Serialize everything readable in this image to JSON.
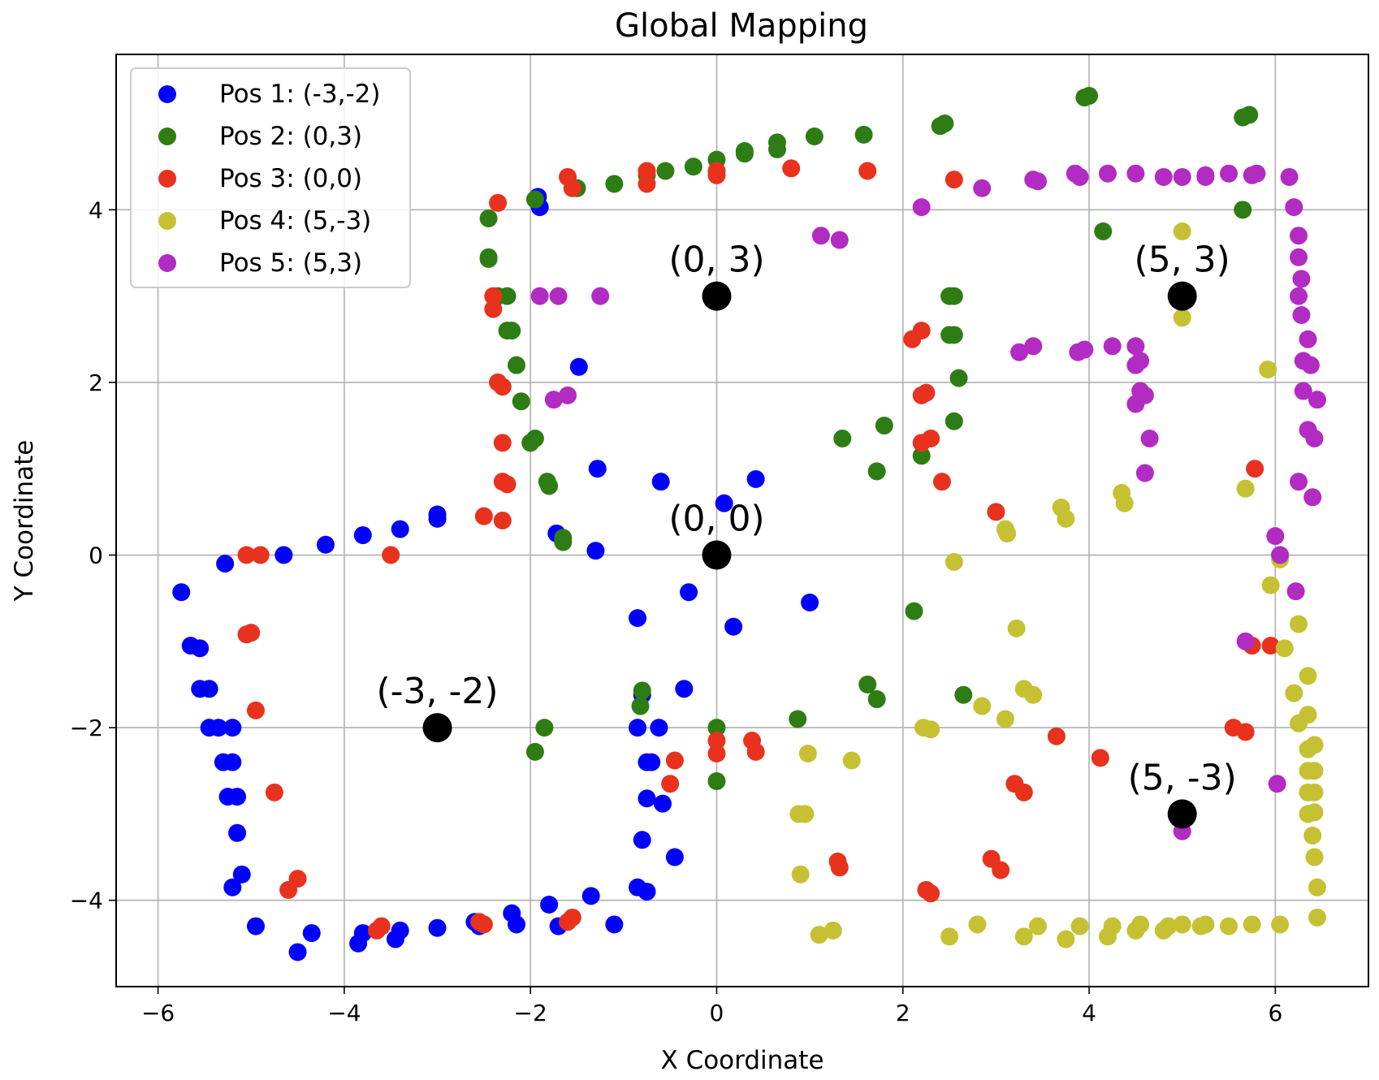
{
  "chart_data": {
    "type": "scatter",
    "title": "Global Mapping",
    "xlabel": "X Coordinate",
    "ylabel": "Y Coordinate",
    "xlim": [
      -6.45,
      7.0
    ],
    "ylim": [
      -5.0,
      5.8
    ],
    "xticks": [
      -6,
      -4,
      -2,
      0,
      2,
      4,
      6
    ],
    "yticks": [
      -4,
      -2,
      0,
      2,
      4
    ],
    "xtick_labels": [
      "−6",
      "−4",
      "−2",
      "0",
      "2",
      "4",
      "6"
    ],
    "ytick_labels": [
      "−4",
      "−2",
      "0",
      "2",
      "4"
    ],
    "grid": true,
    "legend_position": "upper left",
    "series": [
      {
        "name": "Pos 1: (-3,-2)",
        "color": "#0000ff",
        "points": [
          [
            -5.75,
            -0.43
          ],
          [
            -5.65,
            -1.05
          ],
          [
            -5.55,
            -1.08
          ],
          [
            -5.55,
            -1.55
          ],
          [
            -5.45,
            -1.55
          ],
          [
            -5.45,
            -2.0
          ],
          [
            -5.35,
            -2.0
          ],
          [
            -5.2,
            -2.0
          ],
          [
            -5.3,
            -2.4
          ],
          [
            -5.2,
            -2.4
          ],
          [
            -5.25,
            -2.8
          ],
          [
            -5.15,
            -2.8
          ],
          [
            -5.15,
            -3.22
          ],
          [
            -5.1,
            -3.7
          ],
          [
            -5.2,
            -3.85
          ],
          [
            -4.95,
            -4.3
          ],
          [
            -4.5,
            -4.6
          ],
          [
            -4.35,
            -4.38
          ],
          [
            -3.85,
            -4.5
          ],
          [
            -3.8,
            -4.38
          ],
          [
            -3.45,
            -4.45
          ],
          [
            -3.4,
            -4.35
          ],
          [
            -3.0,
            -4.32
          ],
          [
            -2.6,
            -4.25
          ],
          [
            -2.55,
            -4.3
          ],
          [
            -2.2,
            -4.15
          ],
          [
            -2.15,
            -4.28
          ],
          [
            -1.8,
            -4.05
          ],
          [
            -1.7,
            -4.3
          ],
          [
            -1.35,
            -3.95
          ],
          [
            -1.1,
            -4.28
          ],
          [
            -0.85,
            -3.85
          ],
          [
            -0.75,
            -3.9
          ],
          [
            -0.8,
            -3.3
          ],
          [
            -0.45,
            -3.5
          ],
          [
            -0.75,
            -2.82
          ],
          [
            -0.58,
            -2.88
          ],
          [
            -0.7,
            -2.4
          ],
          [
            -0.75,
            -2.4
          ],
          [
            -0.85,
            -2.0
          ],
          [
            -0.62,
            -2.0
          ],
          [
            -0.8,
            -1.62
          ],
          [
            -0.35,
            -1.55
          ],
          [
            -0.85,
            -0.73
          ],
          [
            -0.3,
            -0.43
          ],
          [
            0.18,
            -0.83
          ],
          [
            1.0,
            -0.55
          ],
          [
            -0.6,
            0.85
          ],
          [
            0.08,
            0.6
          ],
          [
            0.42,
            0.88
          ],
          [
            -1.28,
            1.0
          ],
          [
            -1.3,
            0.05
          ],
          [
            -1.72,
            0.25
          ],
          [
            -1.48,
            2.18
          ],
          [
            -1.92,
            4.15
          ],
          [
            -1.9,
            4.03
          ],
          [
            -5.28,
            -0.1
          ],
          [
            -4.65,
            0.0
          ],
          [
            -4.2,
            0.12
          ],
          [
            -3.8,
            0.23
          ],
          [
            -3.4,
            0.3
          ],
          [
            -3.0,
            0.42
          ],
          [
            -3.0,
            0.47
          ]
        ]
      },
      {
        "name": "Pos 2: (0,3)",
        "color": "#2e7d14",
        "points": [
          [
            -2.45,
            3.45
          ],
          [
            -2.45,
            3.9
          ],
          [
            -2.35,
            3.0
          ],
          [
            -2.25,
            3.0
          ],
          [
            -2.25,
            2.6
          ],
          [
            -2.2,
            2.6
          ],
          [
            -2.15,
            2.2
          ],
          [
            -2.1,
            1.78
          ],
          [
            -2.0,
            1.3
          ],
          [
            -1.95,
            1.35
          ],
          [
            -1.8,
            0.8
          ],
          [
            -1.82,
            0.85
          ],
          [
            -1.65,
            0.2
          ],
          [
            -1.65,
            0.15
          ],
          [
            -1.95,
            4.12
          ],
          [
            -1.5,
            4.25
          ],
          [
            -1.1,
            4.3
          ],
          [
            -0.75,
            4.4
          ],
          [
            -0.55,
            4.45
          ],
          [
            -0.25,
            4.5
          ],
          [
            0.0,
            4.58
          ],
          [
            0.3,
            4.65
          ],
          [
            0.3,
            4.68
          ],
          [
            0.65,
            4.7
          ],
          [
            0.65,
            4.78
          ],
          [
            1.05,
            4.85
          ],
          [
            1.58,
            4.87
          ],
          [
            2.4,
            4.97
          ],
          [
            2.45,
            5.0
          ],
          [
            3.95,
            5.3
          ],
          [
            4.0,
            5.32
          ],
          [
            5.65,
            5.07
          ],
          [
            5.72,
            5.1
          ],
          [
            5.65,
            4.0
          ],
          [
            4.15,
            3.75
          ],
          [
            2.5,
            3.0
          ],
          [
            2.55,
            3.0
          ],
          [
            2.5,
            2.55
          ],
          [
            2.55,
            2.55
          ],
          [
            2.6,
            2.05
          ],
          [
            2.55,
            1.55
          ],
          [
            2.2,
            1.15
          ],
          [
            1.8,
            1.5
          ],
          [
            1.35,
            1.35
          ],
          [
            1.72,
            0.97
          ],
          [
            2.12,
            -0.65
          ],
          [
            1.62,
            -1.5
          ],
          [
            1.72,
            -1.67
          ],
          [
            2.65,
            -1.62
          ],
          [
            0.87,
            -1.9
          ],
          [
            0.0,
            -2.0
          ],
          [
            0.0,
            -2.62
          ],
          [
            -1.85,
            -2.0
          ],
          [
            -1.95,
            -2.28
          ],
          [
            -0.8,
            -1.57
          ],
          [
            -0.82,
            -1.75
          ],
          [
            -2.45,
            3.43
          ]
        ]
      },
      {
        "name": "Pos 3: (0,0)",
        "color": "#e8321e",
        "points": [
          [
            -5.05,
            0.0
          ],
          [
            -4.9,
            0.0
          ],
          [
            -3.5,
            0.0
          ],
          [
            -5.05,
            -0.92
          ],
          [
            -5.0,
            -0.9
          ],
          [
            -4.95,
            -1.8
          ],
          [
            -4.75,
            -2.75
          ],
          [
            -4.5,
            -3.75
          ],
          [
            -4.6,
            -3.88
          ],
          [
            -3.65,
            -4.35
          ],
          [
            -3.6,
            -4.3
          ],
          [
            -2.55,
            -4.25
          ],
          [
            -2.5,
            -4.28
          ],
          [
            -1.6,
            -4.25
          ],
          [
            -1.55,
            -4.2
          ],
          [
            -0.45,
            -2.38
          ],
          [
            -0.5,
            -2.65
          ],
          [
            0.0,
            -2.15
          ],
          [
            0.0,
            -2.3
          ],
          [
            0.38,
            -2.15
          ],
          [
            0.42,
            -2.28
          ],
          [
            1.3,
            -3.55
          ],
          [
            1.32,
            -3.62
          ],
          [
            2.25,
            -3.88
          ],
          [
            2.3,
            -3.92
          ],
          [
            2.95,
            -3.52
          ],
          [
            3.05,
            -3.65
          ],
          [
            3.2,
            -2.65
          ],
          [
            3.3,
            -2.75
          ],
          [
            3.65,
            -2.1
          ],
          [
            4.12,
            -2.35
          ],
          [
            5.55,
            -2.0
          ],
          [
            5.68,
            -2.05
          ],
          [
            5.75,
            -1.05
          ],
          [
            5.95,
            -1.05
          ],
          [
            6.05,
            0.0
          ],
          [
            5.78,
            1.0
          ],
          [
            3.0,
            0.5
          ],
          [
            2.42,
            0.85
          ],
          [
            2.2,
            1.3
          ],
          [
            2.3,
            1.35
          ],
          [
            2.2,
            1.85
          ],
          [
            2.25,
            1.88
          ],
          [
            2.1,
            2.5
          ],
          [
            2.2,
            2.6
          ],
          [
            2.55,
            4.35
          ],
          [
            1.62,
            4.45
          ],
          [
            0.8,
            4.48
          ],
          [
            0.0,
            4.4
          ],
          [
            0.0,
            4.45
          ],
          [
            -0.75,
            4.3
          ],
          [
            -0.75,
            4.45
          ],
          [
            -1.6,
            4.38
          ],
          [
            -1.55,
            4.25
          ],
          [
            -2.35,
            4.08
          ],
          [
            -2.4,
            3.0
          ],
          [
            -2.4,
            2.85
          ],
          [
            -2.35,
            2.0
          ],
          [
            -2.3,
            1.95
          ],
          [
            -2.3,
            1.3
          ],
          [
            -2.3,
            0.85
          ],
          [
            -2.25,
            0.82
          ],
          [
            -2.5,
            0.45
          ],
          [
            -2.3,
            0.4
          ]
        ]
      },
      {
        "name": "Pos 4: (5,-3)",
        "color": "#c5c133",
        "points": [
          [
            5.0,
            3.75
          ],
          [
            5.0,
            2.75
          ],
          [
            5.92,
            2.15
          ],
          [
            5.68,
            0.77
          ],
          [
            4.35,
            0.72
          ],
          [
            4.38,
            0.6
          ],
          [
            3.7,
            0.55
          ],
          [
            3.75,
            0.42
          ],
          [
            3.1,
            0.3
          ],
          [
            3.12,
            0.25
          ],
          [
            2.55,
            -0.08
          ],
          [
            3.22,
            -0.85
          ],
          [
            3.3,
            -1.55
          ],
          [
            3.4,
            -1.62
          ],
          [
            2.85,
            -1.75
          ],
          [
            3.1,
            -1.9
          ],
          [
            2.22,
            -2.0
          ],
          [
            2.3,
            -2.02
          ],
          [
            0.98,
            -2.3
          ],
          [
            1.45,
            -2.38
          ],
          [
            0.88,
            -3.0
          ],
          [
            0.95,
            -3.0
          ],
          [
            0.9,
            -3.7
          ],
          [
            1.1,
            -4.4
          ],
          [
            1.25,
            -4.35
          ],
          [
            2.5,
            -4.42
          ],
          [
            2.8,
            -4.28
          ],
          [
            3.3,
            -4.42
          ],
          [
            3.45,
            -4.3
          ],
          [
            3.75,
            -4.45
          ],
          [
            3.9,
            -4.3
          ],
          [
            4.2,
            -4.42
          ],
          [
            4.25,
            -4.3
          ],
          [
            4.5,
            -4.35
          ],
          [
            4.55,
            -4.28
          ],
          [
            4.8,
            -4.35
          ],
          [
            4.85,
            -4.3
          ],
          [
            5.0,
            -4.28
          ],
          [
            5.2,
            -4.3
          ],
          [
            5.25,
            -4.28
          ],
          [
            5.5,
            -4.3
          ],
          [
            5.75,
            -4.28
          ],
          [
            6.05,
            -4.28
          ],
          [
            6.45,
            -4.2
          ],
          [
            6.45,
            -3.85
          ],
          [
            6.42,
            -3.5
          ],
          [
            6.4,
            -3.25
          ],
          [
            6.35,
            -3.0
          ],
          [
            6.42,
            -2.98
          ],
          [
            6.35,
            -2.75
          ],
          [
            6.42,
            -2.75
          ],
          [
            6.35,
            -2.5
          ],
          [
            6.42,
            -2.5
          ],
          [
            6.35,
            -2.25
          ],
          [
            6.42,
            -2.2
          ],
          [
            6.25,
            -1.95
          ],
          [
            6.35,
            -1.85
          ],
          [
            6.2,
            -1.6
          ],
          [
            6.35,
            -1.4
          ],
          [
            6.1,
            -1.08
          ],
          [
            6.25,
            -0.8
          ],
          [
            5.95,
            -0.35
          ],
          [
            6.05,
            -0.05
          ]
        ]
      },
      {
        "name": "Pos 5: (5,3)",
        "color": "#b22bc2",
        "points": [
          [
            -1.9,
            3.0
          ],
          [
            -1.7,
            3.0
          ],
          [
            -1.25,
            3.0
          ],
          [
            -1.75,
            1.8
          ],
          [
            -1.6,
            1.85
          ],
          [
            1.12,
            3.7
          ],
          [
            1.32,
            3.65
          ],
          [
            2.2,
            4.03
          ],
          [
            2.85,
            4.25
          ],
          [
            3.4,
            4.35
          ],
          [
            3.45,
            4.33
          ],
          [
            3.85,
            4.42
          ],
          [
            3.9,
            4.38
          ],
          [
            4.2,
            4.42
          ],
          [
            4.5,
            4.42
          ],
          [
            4.8,
            4.38
          ],
          [
            5.0,
            4.38
          ],
          [
            5.25,
            4.4
          ],
          [
            5.25,
            4.38
          ],
          [
            5.5,
            4.42
          ],
          [
            5.75,
            4.4
          ],
          [
            5.8,
            4.42
          ],
          [
            6.15,
            4.38
          ],
          [
            6.2,
            4.03
          ],
          [
            6.25,
            3.7
          ],
          [
            6.25,
            3.45
          ],
          [
            6.28,
            3.2
          ],
          [
            6.25,
            3.0
          ],
          [
            6.28,
            2.78
          ],
          [
            6.35,
            2.5
          ],
          [
            6.3,
            2.25
          ],
          [
            6.38,
            2.2
          ],
          [
            6.3,
            1.9
          ],
          [
            6.45,
            1.8
          ],
          [
            6.35,
            1.45
          ],
          [
            6.42,
            1.35
          ],
          [
            6.25,
            0.85
          ],
          [
            6.4,
            0.67
          ],
          [
            6.0,
            0.22
          ],
          [
            6.05,
            0.0
          ],
          [
            6.22,
            -0.42
          ],
          [
            5.68,
            -1.0
          ],
          [
            6.02,
            -2.65
          ],
          [
            5.0,
            -3.2
          ],
          [
            4.65,
            1.35
          ],
          [
            4.6,
            0.95
          ],
          [
            4.55,
            1.9
          ],
          [
            4.6,
            1.85
          ],
          [
            4.5,
            1.75
          ],
          [
            4.55,
            2.25
          ],
          [
            4.5,
            2.2
          ],
          [
            4.5,
            2.42
          ],
          [
            4.25,
            2.42
          ],
          [
            3.95,
            2.38
          ],
          [
            3.88,
            2.35
          ],
          [
            3.4,
            2.42
          ],
          [
            3.25,
            2.35
          ]
        ]
      }
    ],
    "reference_points": [
      {
        "label": "(0, 3)",
        "x": 0,
        "y": 3
      },
      {
        "label": "(0, 0)",
        "x": 0,
        "y": 0
      },
      {
        "label": "(-3, -2)",
        "x": -3,
        "y": -2
      },
      {
        "label": "(5, 3)",
        "x": 5,
        "y": 3
      },
      {
        "label": "(5, -3)",
        "x": 5,
        "y": -3
      }
    ]
  }
}
